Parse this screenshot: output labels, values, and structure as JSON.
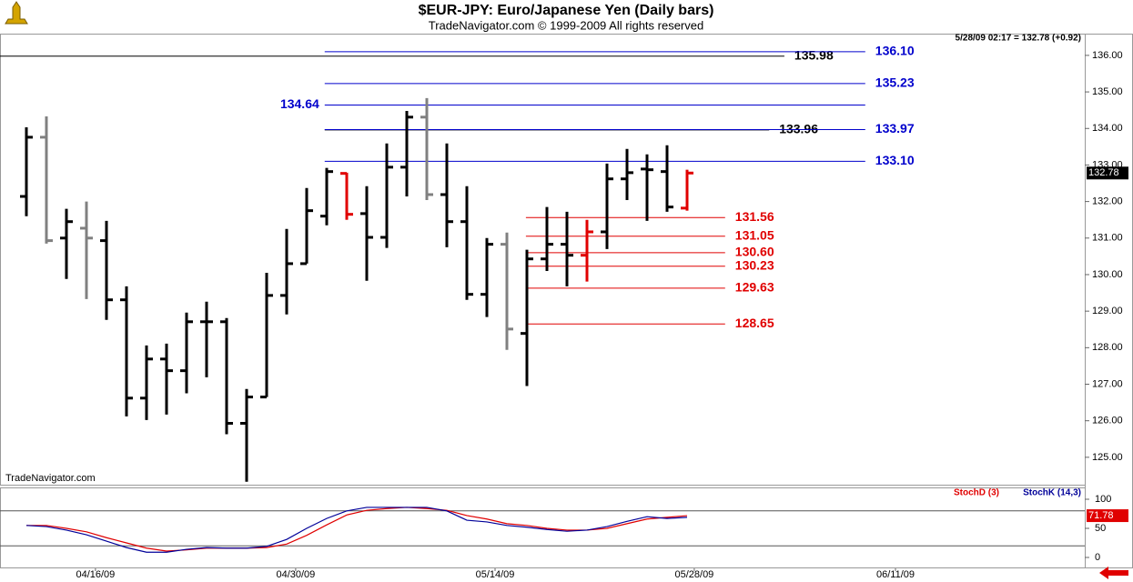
{
  "chart_data": [
    {
      "type": "ohlc",
      "title": "$EUR-JPY:  Euro/Japanese Yen  (Daily bars)",
      "subtitle": "TradeNavigator.com © 1999-2009 All rights reserved",
      "info": "5/28/09 02:17 = 132.78 (+0.92)",
      "watermark": "TradeNavigator.com",
      "xlim": [
        -1.318,
        52.864
      ],
      "ylim": [
        124.25,
        136.57
      ],
      "yticks": [
        {
          "value": 125,
          "label": "125.00"
        },
        {
          "value": 126,
          "label": "126.00"
        },
        {
          "value": 127,
          "label": "127.00"
        },
        {
          "value": 128,
          "label": "128.00"
        },
        {
          "value": 129,
          "label": "129.00"
        },
        {
          "value": 130,
          "label": "130.00"
        },
        {
          "value": 131,
          "label": "131.00"
        },
        {
          "value": 132,
          "label": "132.00"
        },
        {
          "value": 133,
          "label": "133.00"
        },
        {
          "value": 134,
          "label": "134.00"
        },
        {
          "value": 135,
          "label": "135.00"
        },
        {
          "value": 136,
          "label": "136.00"
        }
      ],
      "open": [
        132.14,
        133.76,
        131.0,
        131.27,
        130.93,
        129.31,
        126.62,
        127.69,
        127.37,
        128.71,
        128.71,
        125.93,
        126.65,
        129.43,
        130.3,
        131.6,
        132.77,
        131.67,
        131.02,
        132.94,
        134.31,
        132.19,
        131.45,
        129.46,
        130.83,
        128.39,
        130.43,
        130.83,
        130.53,
        131.17,
        132.62,
        132.89,
        132.82,
        131.82
      ],
      "high": [
        134.03,
        134.33,
        131.8,
        132.0,
        131.47,
        129.68,
        128.06,
        128.11,
        128.96,
        129.26,
        128.81,
        126.87,
        130.05,
        131.25,
        132.37,
        132.92,
        132.79,
        132.42,
        133.59,
        134.48,
        134.83,
        133.59,
        132.42,
        131.0,
        131.15,
        130.68,
        131.85,
        131.72,
        131.5,
        133.04,
        133.44,
        133.29,
        133.54,
        132.87
      ],
      "low": [
        131.6,
        130.85,
        129.88,
        129.33,
        128.76,
        126.12,
        126.02,
        126.17,
        126.75,
        127.19,
        125.63,
        124.33,
        126.65,
        128.91,
        130.3,
        131.35,
        131.5,
        129.83,
        130.73,
        132.14,
        132.04,
        130.75,
        129.31,
        128.84,
        127.94,
        126.95,
        130.1,
        129.68,
        129.81,
        130.7,
        132.04,
        131.47,
        131.72,
        131.75
      ],
      "close": [
        133.76,
        130.93,
        131.45,
        131.0,
        129.31,
        126.62,
        127.69,
        127.37,
        128.71,
        128.71,
        125.93,
        126.65,
        129.43,
        130.3,
        131.75,
        132.82,
        131.65,
        131.02,
        132.94,
        134.31,
        132.19,
        131.45,
        129.46,
        130.83,
        128.51,
        130.43,
        130.83,
        130.53,
        131.17,
        132.62,
        132.79,
        132.87,
        131.85,
        132.78
      ],
      "colors": [
        "#000",
        "#808080",
        "#000",
        "#808080",
        "#000",
        "#000",
        "#000",
        "#000",
        "#000",
        "#000",
        "#000",
        "#000",
        "#000",
        "#000",
        "#000",
        "#000",
        "#e00000",
        "#000",
        "#000",
        "#000",
        "#808080",
        "#000",
        "#000",
        "#000",
        "#808080",
        "#000",
        "#000",
        "#000",
        "#e00000",
        "#000",
        "#000",
        "#000",
        "#000",
        "#e00000"
      ],
      "levels": [
        {
          "value": 135.98,
          "label": "135.98",
          "color": "#000000",
          "from": -1.318,
          "to": 37.86,
          "label_side": "right"
        },
        {
          "value": 133.96,
          "label": "133.96",
          "color": "#000000",
          "from": 14.9,
          "to": 37.1,
          "label_side": "right"
        },
        {
          "value": 136.1,
          "label": "136.10",
          "color": "#0000cc",
          "from": 14.9,
          "to": 41.9,
          "label_side": "right"
        },
        {
          "value": 135.23,
          "label": "135.23",
          "color": "#0000cc",
          "from": 14.9,
          "to": 41.9,
          "label_side": "right"
        },
        {
          "value": 134.64,
          "label": "134.64",
          "color": "#0000cc",
          "from": 14.9,
          "to": 41.9,
          "label_side": "left"
        },
        {
          "value": 133.97,
          "label": "133.97",
          "color": "#0000cc",
          "from": 14.9,
          "to": 41.9,
          "label_side": "right"
        },
        {
          "value": 133.1,
          "label": "133.10",
          "color": "#0000cc",
          "from": 14.9,
          "to": 41.9,
          "label_side": "right"
        },
        {
          "value": 131.56,
          "label": "131.56",
          "color": "#e00000",
          "from": 24.95,
          "to": 34.9,
          "label_side": "right"
        },
        {
          "value": 131.05,
          "label": "131.05",
          "color": "#e00000",
          "from": 24.95,
          "to": 34.9,
          "label_side": "right"
        },
        {
          "value": 130.6,
          "label": "130.60",
          "color": "#e00000",
          "from": 24.95,
          "to": 34.9,
          "label_side": "right"
        },
        {
          "value": 130.23,
          "label": "130.23",
          "color": "#e00000",
          "from": 24.95,
          "to": 34.9,
          "label_side": "right"
        },
        {
          "value": 129.63,
          "label": "129.63",
          "color": "#e00000",
          "from": 24.95,
          "to": 34.9,
          "label_side": "right"
        },
        {
          "value": 128.65,
          "label": "128.65",
          "color": "#e00000",
          "from": 24.95,
          "to": 34.9,
          "label_side": "right"
        }
      ],
      "last": {
        "value": 132.78,
        "label": "132.78"
      }
    },
    {
      "type": "line",
      "xlim": [
        -1.318,
        52.864
      ],
      "ylim": [
        -18.75,
        118.75
      ],
      "yticks": [
        0,
        50,
        100
      ],
      "ref_lines": [
        80,
        20
      ],
      "xticks": [
        {
          "value": 3.45,
          "label": "04/16/09"
        },
        {
          "value": 13.45,
          "label": "04/30/09"
        },
        {
          "value": 23.41,
          "label": "05/14/09"
        },
        {
          "value": 33.36,
          "label": "05/28/09"
        },
        {
          "value": 43.41,
          "label": "06/11/09"
        }
      ],
      "series": [
        {
          "name": "StochD (3)",
          "color": "#e00000",
          "values": [
            55,
            55,
            50,
            44,
            34,
            25,
            16,
            11,
            13,
            16,
            16,
            16,
            17,
            23,
            38,
            56,
            73,
            81,
            84,
            86,
            84,
            81,
            72,
            66,
            58,
            55,
            50,
            47,
            47,
            50,
            58,
            66,
            69,
            71.78
          ]
        },
        {
          "name": "StochK (14,3)",
          "color": "#000099",
          "values": [
            55,
            53,
            47,
            39,
            28,
            17,
            9,
            9,
            14,
            17,
            16,
            16,
            19,
            31,
            50,
            67,
            80,
            86,
            86,
            86,
            86,
            80,
            64,
            61,
            55,
            52,
            48,
            45,
            47,
            53,
            62,
            70,
            67,
            69
          ]
        }
      ],
      "last": {
        "value": 71.78,
        "label": "71.78"
      }
    }
  ]
}
